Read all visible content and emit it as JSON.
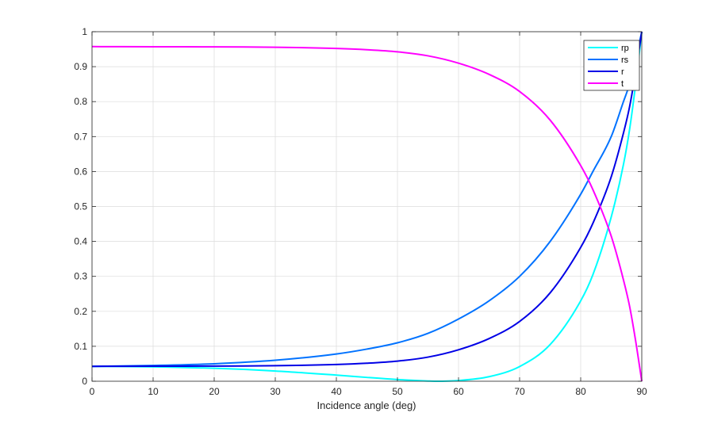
{
  "chart_data": {
    "type": "line",
    "title": "",
    "xlabel": "Incidence angle (deg)",
    "ylabel": "",
    "xlim": [
      0,
      90
    ],
    "ylim": [
      0,
      1
    ],
    "xticks": [
      0,
      10,
      20,
      30,
      40,
      50,
      60,
      70,
      80,
      90
    ],
    "yticks": [
      0,
      0.1,
      0.2,
      0.3,
      0.4,
      0.5,
      0.6,
      0.7,
      0.8,
      0.9,
      1
    ],
    "grid": true,
    "legend": "top-right",
    "series": [
      {
        "name": "rp",
        "color": "#00ffff",
        "x": [
          0,
          10,
          20,
          30,
          40,
          45,
          50,
          55,
          56.3,
          60,
          65,
          70,
          75,
          80,
          82,
          85,
          87,
          88,
          89,
          90
        ],
        "y": [
          0.0426,
          0.0412,
          0.037,
          0.0293,
          0.0176,
          0.0109,
          0.0049,
          0.0007,
          0.0,
          0.002,
          0.013,
          0.042,
          0.105,
          0.23,
          0.305,
          0.47,
          0.62,
          0.72,
          0.85,
          1.0
        ]
      },
      {
        "name": "rs",
        "color": "#0072ff",
        "x": [
          0,
          10,
          20,
          30,
          40,
          45,
          50,
          55,
          60,
          65,
          70,
          75,
          80,
          82,
          85,
          87,
          88,
          89,
          90
        ],
        "y": [
          0.0426,
          0.045,
          0.05,
          0.06,
          0.078,
          0.092,
          0.11,
          0.137,
          0.178,
          0.23,
          0.3,
          0.4,
          0.535,
          0.6,
          0.7,
          0.8,
          0.85,
          0.92,
          1.0
        ]
      },
      {
        "name": "r",
        "color": "#0000e6",
        "x": [
          0,
          10,
          20,
          30,
          40,
          45,
          50,
          55,
          60,
          65,
          70,
          75,
          80,
          82,
          85,
          87,
          88,
          89,
          90
        ],
        "y": [
          0.0426,
          0.043,
          0.0435,
          0.0445,
          0.048,
          0.0515,
          0.0575,
          0.069,
          0.09,
          0.122,
          0.171,
          0.253,
          0.383,
          0.452,
          0.585,
          0.71,
          0.785,
          0.885,
          1.0
        ]
      },
      {
        "name": "t",
        "color": "#ff00ff",
        "x": [
          0,
          10,
          20,
          30,
          40,
          45,
          50,
          55,
          60,
          65,
          70,
          75,
          80,
          82,
          85,
          87,
          88,
          89,
          90
        ],
        "y": [
          0.9574,
          0.957,
          0.9565,
          0.9555,
          0.952,
          0.9485,
          0.9425,
          0.931,
          0.91,
          0.878,
          0.829,
          0.747,
          0.617,
          0.548,
          0.415,
          0.29,
          0.215,
          0.115,
          0.0
        ]
      }
    ]
  }
}
